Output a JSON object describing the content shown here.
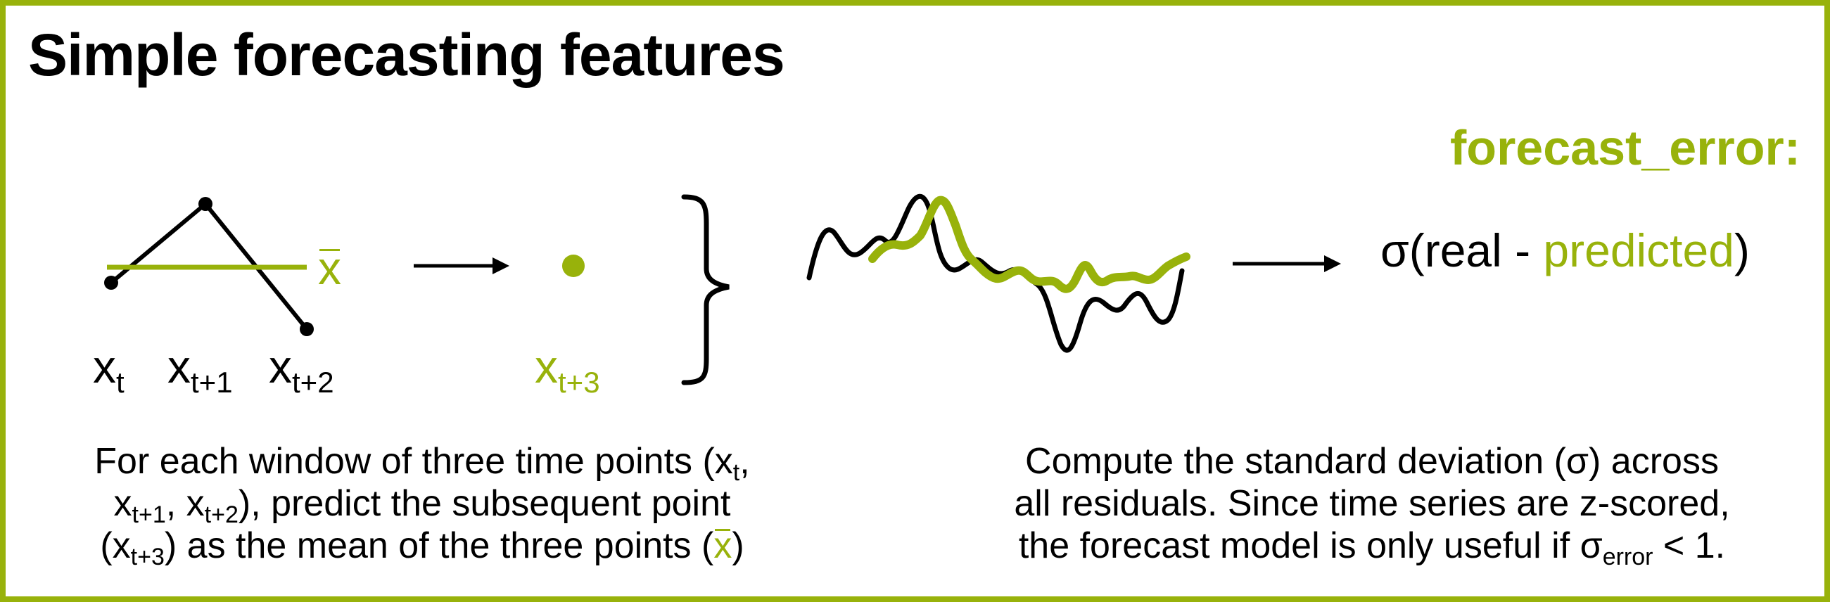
{
  "title": "Simple forecasting features",
  "feature_name": "forecast_error:",
  "formula": {
    "prefix": "σ(real - ",
    "predicted": "predicted",
    "suffix": ")"
  },
  "mean_symbol": "x",
  "points": {
    "x_base": "x",
    "t_sub": "t",
    "t1_sub": "t+1",
    "t2_sub": "t+2",
    "t3_sub": "t+3"
  },
  "left_description": {
    "line1": "For each window of three time points (x",
    "line1_sub": "t",
    "line1_end": ",",
    "line2_a": "x",
    "line2_sub1": "t+1",
    "line2_b": ", x",
    "line2_sub2": "t+2",
    "line2_c": "), predict the subsequent point",
    "line3_a": "(x",
    "line3_sub": "t+3",
    "line3_b": ") as the mean of the three points (",
    "line3_x": "x",
    "line3_c": ")"
  },
  "right_description": {
    "line1": "Compute the standard deviation (σ) across",
    "line2": "all residuals. Since time series are z-scored,",
    "line3_a": "the forecast model is only useful if  σ",
    "line3_sub": "error",
    "line3_b": " < 1."
  },
  "colors": {
    "accent": "#98b20b",
    "ink": "#000000"
  }
}
